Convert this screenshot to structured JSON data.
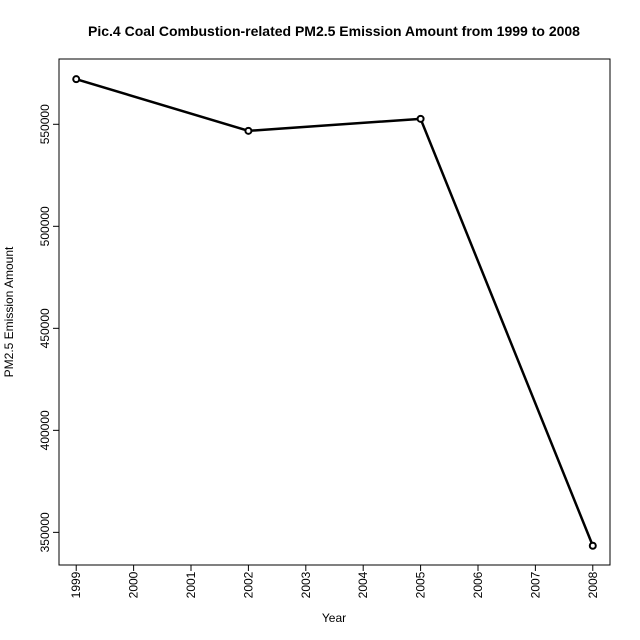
{
  "chart_data": {
    "type": "line",
    "title": "Pic.4 Coal Combustion-related PM2.5 Emission Amount from 1999 to 2008",
    "xlabel": "Year",
    "ylabel": "PM2.5 Emission Amount",
    "x": [
      1999,
      2002,
      2005,
      2008
    ],
    "y": [
      572126,
      546789,
      552675,
      343432
    ],
    "xlim": [
      1998.7,
      2008.3
    ],
    "ylim": [
      334000,
      582000
    ],
    "x_ticks": [
      1999,
      2000,
      2001,
      2002,
      2003,
      2004,
      2005,
      2006,
      2007,
      2008
    ],
    "y_ticks": [
      350000,
      400000,
      450000,
      500000,
      550000
    ],
    "line_color": "#000000",
    "marker": "open-circle",
    "grid": false,
    "legend": "none"
  }
}
